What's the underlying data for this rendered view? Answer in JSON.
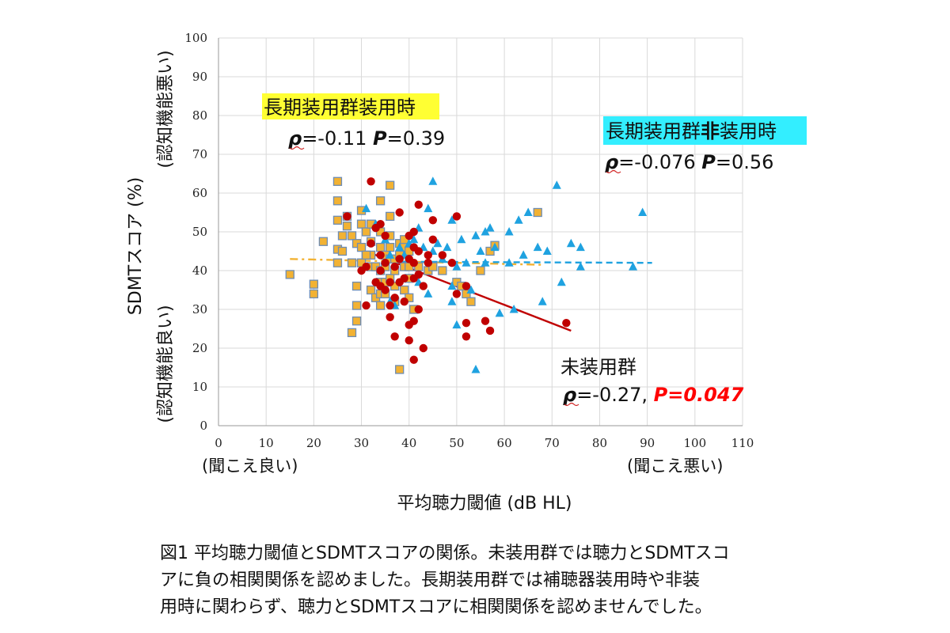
{
  "chart_data": {
    "type": "scatter",
    "ylabel": "SDMTスコア (%)",
    "ylabel_top_note": "(認知機能悪い)",
    "ylabel_bottom_note": "(認知機能良い)",
    "xlabel": "平均聴力閾値 (dB HL)",
    "xlabel_left_note": "(聞こえ良い)",
    "xlabel_right_note": "(聞こえ悪い)",
    "xlim": [
      0,
      110
    ],
    "ylim": [
      0,
      100
    ],
    "xticks": [
      0,
      10,
      20,
      30,
      40,
      50,
      60,
      70,
      80,
      90,
      100,
      110
    ],
    "yticks": [
      0,
      10,
      20,
      30,
      40,
      50,
      60,
      70,
      80,
      90,
      100
    ],
    "grid": true,
    "series": [
      {
        "name": "長期装用群装用時",
        "marker": "square",
        "color": "#F2B233",
        "edge_color": "#6E8DB4",
        "points": [
          [
            15,
            39
          ],
          [
            20,
            36.5
          ],
          [
            20,
            34
          ],
          [
            22,
            47.5
          ],
          [
            25,
            63
          ],
          [
            25,
            58
          ],
          [
            25,
            53
          ],
          [
            25,
            45.5
          ],
          [
            25,
            42
          ],
          [
            26,
            49
          ],
          [
            26,
            45
          ],
          [
            27,
            54
          ],
          [
            27,
            51.5
          ],
          [
            28,
            49
          ],
          [
            28,
            24
          ],
          [
            29,
            47
          ],
          [
            29,
            36
          ],
          [
            29,
            31
          ],
          [
            29,
            27
          ],
          [
            30,
            55.5
          ],
          [
            30,
            52
          ],
          [
            30,
            46
          ],
          [
            30,
            42
          ],
          [
            31,
            50
          ],
          [
            32,
            52
          ],
          [
            32,
            47.5
          ],
          [
            32,
            44
          ],
          [
            32,
            41
          ],
          [
            32,
            35
          ],
          [
            33,
            41
          ],
          [
            33,
            33
          ],
          [
            34,
            58
          ],
          [
            34,
            50
          ],
          [
            34,
            46
          ],
          [
            34,
            40
          ],
          [
            34,
            37
          ],
          [
            34,
            34
          ],
          [
            34,
            31
          ],
          [
            35,
            44
          ],
          [
            35,
            41
          ],
          [
            35,
            37
          ],
          [
            35,
            34
          ],
          [
            36,
            62
          ],
          [
            36,
            54
          ],
          [
            36,
            49
          ],
          [
            36,
            46
          ],
          [
            36,
            43
          ],
          [
            36,
            38
          ],
          [
            37,
            43
          ],
          [
            37,
            40
          ],
          [
            37,
            36
          ],
          [
            37,
            32
          ],
          [
            38,
            47
          ],
          [
            38,
            44
          ],
          [
            38,
            14.5
          ],
          [
            39,
            48
          ],
          [
            39,
            46
          ],
          [
            39,
            41
          ],
          [
            39,
            35
          ],
          [
            40,
            45
          ],
          [
            40,
            41
          ],
          [
            40,
            33
          ],
          [
            41,
            30
          ],
          [
            42,
            41
          ],
          [
            44,
            40
          ],
          [
            45,
            41
          ],
          [
            47,
            40
          ],
          [
            50,
            37
          ],
          [
            51,
            36
          ],
          [
            52,
            34
          ],
          [
            53,
            32
          ],
          [
            55,
            40
          ],
          [
            57,
            45
          ],
          [
            58,
            46.5
          ],
          [
            67,
            55
          ],
          [
            28,
            42
          ],
          [
            31,
            44
          ],
          [
            40,
            38
          ]
        ]
      },
      {
        "name": "長期装用群非装用時",
        "marker": "triangle",
        "color": "#1FA2E0",
        "points": [
          [
            31,
            56
          ],
          [
            33,
            52
          ],
          [
            35,
            48
          ],
          [
            36,
            44
          ],
          [
            37,
            31
          ],
          [
            38,
            46
          ],
          [
            39,
            44
          ],
          [
            40,
            47
          ],
          [
            41,
            48
          ],
          [
            42,
            51
          ],
          [
            43,
            46
          ],
          [
            44,
            34
          ],
          [
            45,
            63
          ],
          [
            45,
            45
          ],
          [
            46,
            47
          ],
          [
            47,
            43
          ],
          [
            48,
            46
          ],
          [
            49,
            53
          ],
          [
            49,
            36
          ],
          [
            49,
            32
          ],
          [
            50,
            26
          ],
          [
            50,
            41
          ],
          [
            51,
            48
          ],
          [
            52,
            42
          ],
          [
            53,
            35
          ],
          [
            54,
            14.5
          ],
          [
            54,
            49
          ],
          [
            55,
            45
          ],
          [
            56,
            50
          ],
          [
            56,
            42
          ],
          [
            57,
            51
          ],
          [
            58,
            46
          ],
          [
            59,
            29
          ],
          [
            61,
            50
          ],
          [
            61,
            42
          ],
          [
            62,
            30
          ],
          [
            63,
            53
          ],
          [
            64,
            44
          ],
          [
            65,
            55
          ],
          [
            67,
            46
          ],
          [
            68,
            32
          ],
          [
            69,
            45
          ],
          [
            71,
            62
          ],
          [
            72,
            37
          ],
          [
            74,
            47
          ],
          [
            76,
            41
          ],
          [
            76,
            46
          ],
          [
            87,
            41
          ],
          [
            89,
            55
          ],
          [
            42,
            37
          ],
          [
            44,
            56
          ],
          [
            36,
            32
          ]
        ]
      },
      {
        "name": "未装用群",
        "marker": "circle",
        "color": "#C00000",
        "points": [
          [
            27,
            54
          ],
          [
            30,
            40
          ],
          [
            31,
            31
          ],
          [
            31,
            41
          ],
          [
            32,
            63
          ],
          [
            32,
            47
          ],
          [
            33,
            51
          ],
          [
            33,
            37
          ],
          [
            34,
            44
          ],
          [
            34,
            40
          ],
          [
            34,
            36
          ],
          [
            35,
            49
          ],
          [
            35,
            42
          ],
          [
            35,
            35
          ],
          [
            36,
            37
          ],
          [
            36,
            31
          ],
          [
            36,
            28
          ],
          [
            37,
            41
          ],
          [
            37,
            33
          ],
          [
            37,
            23
          ],
          [
            38,
            55
          ],
          [
            38,
            43
          ],
          [
            38,
            37
          ],
          [
            39,
            38
          ],
          [
            39,
            32
          ],
          [
            40,
            49
          ],
          [
            40,
            43
          ],
          [
            40,
            26
          ],
          [
            40,
            22
          ],
          [
            41,
            50
          ],
          [
            41,
            46
          ],
          [
            41,
            42
          ],
          [
            41,
            38
          ],
          [
            41,
            27
          ],
          [
            41,
            17
          ],
          [
            42,
            57
          ],
          [
            42,
            45
          ],
          [
            42,
            39
          ],
          [
            42,
            30
          ],
          [
            43,
            36
          ],
          [
            43,
            20
          ],
          [
            44,
            44
          ],
          [
            44,
            42
          ],
          [
            45,
            53
          ],
          [
            45,
            48
          ],
          [
            47,
            44
          ],
          [
            49,
            42
          ],
          [
            50,
            54
          ],
          [
            50,
            34
          ],
          [
            52,
            36
          ],
          [
            52,
            26.5
          ],
          [
            52,
            23
          ],
          [
            56,
            27
          ],
          [
            57,
            24.5
          ],
          [
            73,
            26.5
          ],
          [
            34,
            52
          ]
        ]
      }
    ],
    "trendlines": [
      {
        "series": "長期装用群装用時",
        "style": "dash-dot",
        "color": "#F2B233",
        "x": [
          15,
          68
        ],
        "y": [
          43,
          41.5
        ]
      },
      {
        "series": "長期装用群非装用時",
        "style": "dashed",
        "color": "#1FA2E0",
        "x": [
          36,
          91
        ],
        "y": [
          42.3,
          42
        ]
      },
      {
        "series": "未装用群",
        "style": "solid",
        "color": "#C00000",
        "x": [
          32,
          74
        ],
        "y": [
          44.5,
          24.5
        ]
      }
    ],
    "annotations": [
      {
        "series": "長期装用群装用時",
        "label": "長期装用群装用時",
        "label_highlight": "#FFFF33",
        "rho": "ρ",
        "rho_value": "=-0.11 ",
        "p": "P",
        "p_value": "=0.39"
      },
      {
        "series": "長期装用群非装用時",
        "label_prefix": "長期装用群",
        "label_bold": "非",
        "label_suffix": "装用時",
        "label_highlight": "#33EEFF",
        "rho": "ρ",
        "rho_value": "=-0.076 ",
        "p": "P",
        "p_value": "=0.56"
      },
      {
        "series": "未装用群",
        "label": "未装用群",
        "label_color": "#C00000",
        "rho": "ρ",
        "rho_value": "=-0.27, ",
        "p": "P",
        "p_value": "=0.047",
        "p_color": "#FF0000"
      }
    ]
  },
  "caption": {
    "line1": "図1 平均聴力閾値とSDMTスコアの関係。未装用群では聴力とSDMTスコ",
    "line2": "アに負の相関関係を認めました。長期装用群では補聴器装用時や非装",
    "line3": "用時に関わらず、聴力とSDMTスコアに相関関係を認めませんでした。"
  }
}
